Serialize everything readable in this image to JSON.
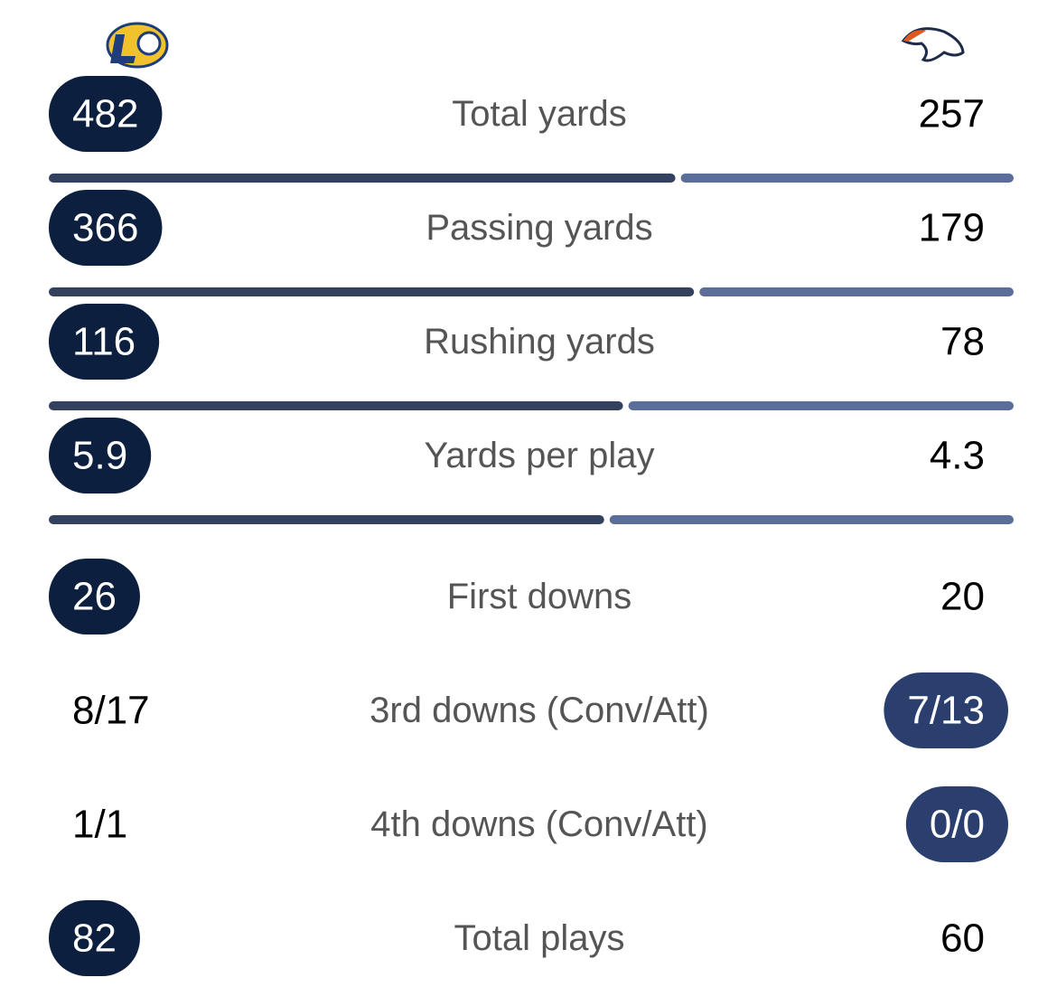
{
  "rows": [
    {
      "label": "Total yards",
      "left": 482,
      "right": 257,
      "highlight": "left",
      "bar": true
    },
    {
      "label": "Passing yards",
      "left": 366,
      "right": 179,
      "highlight": "left",
      "bar": true
    },
    {
      "label": "Rushing yards",
      "left": 116,
      "right": 78,
      "highlight": "left",
      "bar": true
    },
    {
      "label": "Yards per play",
      "left": 5.9,
      "right": 4.3,
      "highlight": "left",
      "bar": true
    },
    {
      "label": "First downs",
      "left": 26,
      "right": 20,
      "highlight": "left",
      "bar": false
    },
    {
      "label": "3rd downs (Conv/Att)",
      "left": "8/17",
      "right": "7/13",
      "highlight": "right",
      "bar": false
    },
    {
      "label": "4th downs (Conv/Att)",
      "left": "1/1",
      "right": "0/0",
      "highlight": "right",
      "bar": false
    },
    {
      "label": "Total plays",
      "left": 82,
      "right": 60,
      "highlight": "left",
      "bar": false
    }
  ]
}
